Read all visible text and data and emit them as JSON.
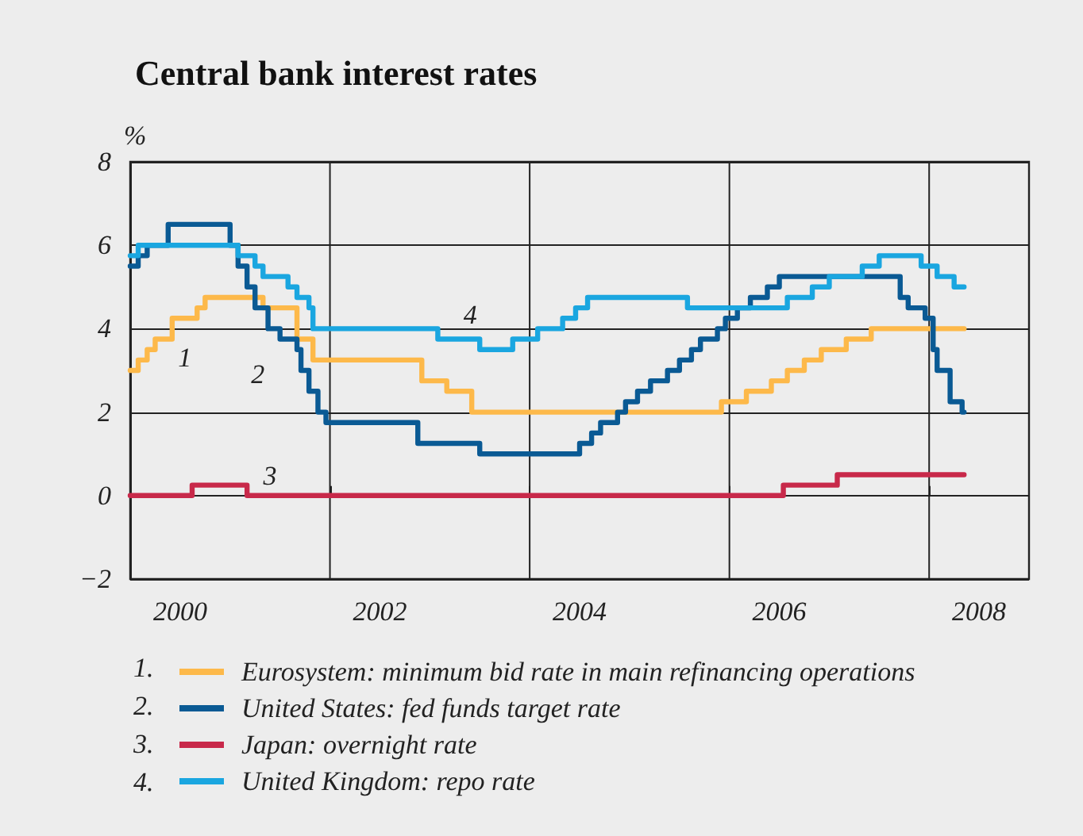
{
  "chart_data": {
    "type": "step",
    "title": "Central bank interest rates",
    "ylabel": "%",
    "xlim": [
      2000,
      2009
    ],
    "xticks": [
      {
        "value": 2000.5,
        "label": "2000"
      },
      {
        "value": 2002,
        "label": null
      },
      {
        "value": 2002.5,
        "label": "2002"
      },
      {
        "value": 2004,
        "label": null
      },
      {
        "value": 2004.5,
        "label": "2004"
      },
      {
        "value": 2006,
        "label": null
      },
      {
        "value": 2006.5,
        "label": "2006"
      },
      {
        "value": 2008,
        "label": null
      },
      {
        "value": 2008.5,
        "label": "2008"
      }
    ],
    "ylim": [
      -2,
      8
    ],
    "yticks": [
      {
        "value": -2,
        "label": "−2"
      },
      0,
      2,
      4,
      6,
      8
    ],
    "grid": true,
    "legend": "bottom",
    "line_style": "solid",
    "marker": "none",
    "series": [
      {
        "name": "Eurosystem: minimum bid rate in main refinancing operations",
        "color": "#fdb94a",
        "x": [
          2000,
          2000.08,
          2000.17,
          2000.25,
          2000.42,
          2000.67,
          2000.75,
          2001.33,
          2001.67,
          2001.83,
          2002.92,
          2003.17,
          2003.42,
          2005.92,
          2006.17,
          2006.42,
          2006.58,
          2006.75,
          2006.92,
          2007.17,
          2007.42,
          2008.35
        ],
        "values": [
          3.0,
          3.25,
          3.5,
          3.75,
          4.25,
          4.5,
          4.75,
          4.5,
          3.75,
          3.25,
          2.75,
          2.5,
          2.0,
          2.25,
          2.5,
          2.75,
          3.0,
          3.25,
          3.5,
          3.75,
          4.0,
          4.0
        ]
      },
      {
        "name": "United States: fed funds target rate",
        "color": "#0a5a94",
        "x": [
          2000,
          2000.08,
          2000.17,
          2000.38,
          2001.0,
          2001.08,
          2001.17,
          2001.25,
          2001.38,
          2001.5,
          2001.67,
          2001.71,
          2001.79,
          2001.88,
          2001.96,
          2002.88,
          2003.5,
          2004.5,
          2004.62,
          2004.71,
          2004.88,
          2004.96,
          2005.08,
          2005.21,
          2005.38,
          2005.5,
          2005.62,
          2005.71,
          2005.88,
          2005.96,
          2006.08,
          2006.21,
          2006.38,
          2006.5,
          2007.71,
          2007.79,
          2007.96,
          2008.04,
          2008.08,
          2008.21,
          2008.33,
          2008.35
        ],
        "values": [
          5.5,
          5.75,
          6.0,
          6.5,
          6.0,
          5.5,
          5.0,
          4.5,
          4.0,
          3.75,
          3.5,
          3.0,
          2.5,
          2.0,
          1.75,
          1.25,
          1.0,
          1.25,
          1.5,
          1.75,
          2.0,
          2.25,
          2.5,
          2.75,
          3.0,
          3.25,
          3.5,
          3.75,
          4.0,
          4.25,
          4.5,
          4.75,
          5.0,
          5.25,
          4.75,
          4.5,
          4.25,
          3.5,
          3.0,
          2.25,
          2.0,
          2.0
        ]
      },
      {
        "name": "Japan: overnight rate",
        "color": "#c8294a",
        "x": [
          2000,
          2000.62,
          2001.17,
          2006.54,
          2007.08,
          2008.35
        ],
        "values": [
          0,
          0.25,
          0,
          0.25,
          0.5,
          0.5
        ]
      },
      {
        "name": "United Kingdom: repo rate",
        "color": "#1aa6e0",
        "x": [
          2000,
          2000.08,
          2001.08,
          2001.25,
          2001.33,
          2001.58,
          2001.67,
          2001.79,
          2001.83,
          2003.08,
          2003.5,
          2003.83,
          2004.08,
          2004.33,
          2004.46,
          2004.58,
          2005.58,
          2006.58,
          2006.83,
          2007.0,
          2007.33,
          2007.5,
          2007.92,
          2008.08,
          2008.25,
          2008.35
        ],
        "values": [
          5.75,
          6.0,
          5.75,
          5.5,
          5.25,
          5.0,
          4.75,
          4.5,
          4.0,
          3.75,
          3.5,
          3.75,
          4.0,
          4.25,
          4.5,
          4.75,
          4.5,
          4.75,
          5.0,
          5.25,
          5.5,
          5.75,
          5.5,
          5.25,
          5.0,
          5.0
        ]
      }
    ],
    "annotations": [
      "1",
      "2",
      "3",
      "4",
      "1.",
      "2.",
      "3.",
      "4."
    ]
  }
}
